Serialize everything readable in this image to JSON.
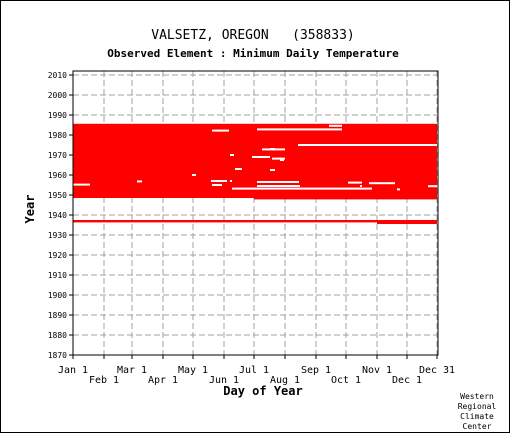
{
  "chart_data": {
    "type": "heatmap",
    "title": "VALSETZ, OREGON   (358833)",
    "subtitle": "Observed Element : Minimum Daily Temperature",
    "xlabel": "Day of Year",
    "ylabel": "Year",
    "ylim": [
      1870,
      2012
    ],
    "xlim": [
      1,
      366
    ],
    "y_ticks": [
      1870,
      1880,
      1890,
      1900,
      1910,
      1920,
      1930,
      1940,
      1950,
      1960,
      1970,
      1980,
      1990,
      2000,
      2010
    ],
    "x_ticks_upper": [
      {
        "label": "Jan 1",
        "day": 1
      },
      {
        "label": "Mar 1",
        "day": 60
      },
      {
        "label": "May 1",
        "day": 121
      },
      {
        "label": "Jul 1",
        "day": 182
      },
      {
        "label": "Sep 1",
        "day": 244
      },
      {
        "label": "Nov 1",
        "day": 305
      },
      {
        "label": "Dec 31",
        "day": 365
      }
    ],
    "x_ticks_lower": [
      {
        "label": "Feb 1",
        "day": 32
      },
      {
        "label": "Apr 1",
        "day": 91
      },
      {
        "label": "Jun 1",
        "day": 152
      },
      {
        "label": "Aug 1",
        "day": 213
      },
      {
        "label": "Oct 1",
        "day": 274
      },
      {
        "label": "Dec 1",
        "day": 335
      }
    ],
    "grid": true,
    "series_color": "#ff0000",
    "coverage_blocks": [
      {
        "year_start": 1948.5,
        "year_end": 1985.6,
        "day_start": 1,
        "day_end": 365
      },
      {
        "year_start": 1936.3,
        "year_end": 1937.5,
        "day_start": 1,
        "day_end": 365
      }
    ],
    "missing_gaps": [
      {
        "year": 1982.8,
        "day_start": 185,
        "day_end": 270
      },
      {
        "year": 1984.6,
        "day_start": 257,
        "day_end": 270
      },
      {
        "year": 1975.0,
        "day_start": 226,
        "day_end": 365
      },
      {
        "year": 1982.2,
        "day_start": 140,
        "day_end": 157
      },
      {
        "year": 1973.0,
        "day_start": 198,
        "day_end": 203
      },
      {
        "year": 1972.8,
        "day_start": 190,
        "day_end": 213
      },
      {
        "year": 1970.0,
        "day_start": 158,
        "day_end": 162
      },
      {
        "year": 1969.0,
        "day_start": 180,
        "day_end": 198
      },
      {
        "year": 1968.2,
        "day_start": 200,
        "day_end": 213
      },
      {
        "year": 1967.5,
        "day_start": 208,
        "day_end": 212
      },
      {
        "year": 1963.0,
        "day_start": 163,
        "day_end": 170
      },
      {
        "year": 1962.5,
        "day_start": 198,
        "day_end": 203
      },
      {
        "year": 1960.0,
        "day_start": 120,
        "day_end": 124
      },
      {
        "year": 1957.0,
        "day_start": 139,
        "day_end": 155
      },
      {
        "year": 1957.0,
        "day_start": 158,
        "day_end": 160
      },
      {
        "year": 1956.5,
        "day_start": 185,
        "day_end": 227
      },
      {
        "year": 1956.2,
        "day_start": 276,
        "day_end": 290
      },
      {
        "year": 1955.9,
        "day_start": 297,
        "day_end": 323
      },
      {
        "year": 1955.2,
        "day_start": 1,
        "day_end": 18
      },
      {
        "year": 1955.0,
        "day_start": 140,
        "day_end": 150
      },
      {
        "year": 1954.5,
        "day_start": 185,
        "day_end": 228
      },
      {
        "year": 1954.5,
        "day_start": 288,
        "day_end": 290
      },
      {
        "year": 1954.4,
        "day_start": 356,
        "day_end": 365
      },
      {
        "year": 1953.2,
        "day_start": 160,
        "day_end": 300
      },
      {
        "year": 1952.8,
        "day_start": 325,
        "day_end": 328
      },
      {
        "year": 1956.8,
        "day_start": 65,
        "day_end": 70
      }
    ],
    "edge_stub_years": [
      {
        "year_start": 1947.8,
        "year_end": 1948.8,
        "day_start": 182,
        "day_end": 365
      },
      {
        "year_start": 1935.5,
        "year_end": 1936.8,
        "day_start": 305,
        "day_end": 365
      }
    ]
  },
  "credit": {
    "line1": "Western",
    "line2": "Regional",
    "line3": "Climate",
    "line4": "Center"
  }
}
